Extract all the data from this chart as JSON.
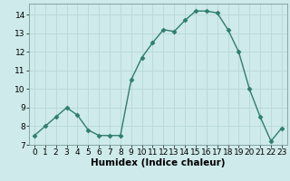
{
  "x": [
    0,
    1,
    2,
    3,
    4,
    5,
    6,
    7,
    8,
    9,
    10,
    11,
    12,
    13,
    14,
    15,
    16,
    17,
    18,
    19,
    20,
    21,
    22,
    23
  ],
  "y": [
    7.5,
    8.0,
    8.5,
    9.0,
    8.6,
    7.8,
    7.5,
    7.5,
    7.5,
    10.5,
    11.7,
    12.5,
    13.2,
    13.1,
    13.7,
    14.2,
    14.2,
    14.1,
    13.2,
    12.0,
    10.0,
    8.5,
    7.2,
    7.9
  ],
  "line_color": "#2e7d6e",
  "marker": "D",
  "marker_size": 2.5,
  "bg_color": "#ceeaea",
  "grid_color": "#b8d8d8",
  "xlabel": "Humidex (Indice chaleur)",
  "ylim": [
    7,
    14.6
  ],
  "xlim": [
    -0.5,
    23.5
  ],
  "yticks": [
    7,
    8,
    9,
    10,
    11,
    12,
    13,
    14
  ],
  "xticks": [
    0,
    1,
    2,
    3,
    4,
    5,
    6,
    7,
    8,
    9,
    10,
    11,
    12,
    13,
    14,
    15,
    16,
    17,
    18,
    19,
    20,
    21,
    22,
    23
  ],
  "label_fontsize": 7.5,
  "tick_fontsize": 6.5
}
